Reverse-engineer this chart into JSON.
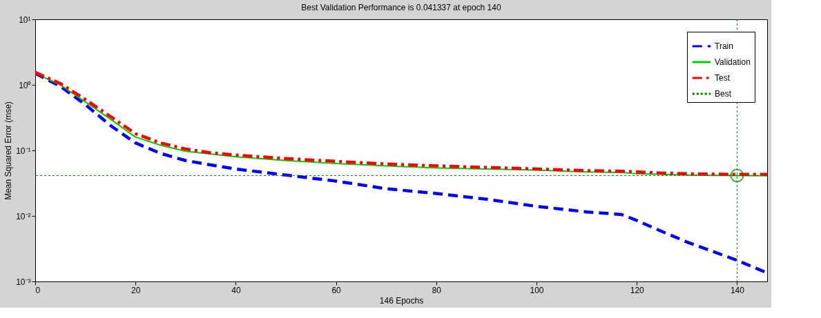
{
  "chart_data": {
    "type": "line",
    "title": "Best Validation Performance is 0.041337 at epoch 140",
    "xlabel": "146 Epochs",
    "ylabel": "Mean Squared Error  (mse)",
    "x": [
      0,
      5,
      10,
      15,
      20,
      25,
      30,
      35,
      40,
      50,
      60,
      70,
      80,
      90,
      100,
      110,
      117,
      120,
      125,
      130,
      135,
      140,
      146
    ],
    "series": [
      {
        "name": "Train",
        "color": "#0000ff",
        "line_style": "dashed",
        "values": [
          1.5,
          0.95,
          0.5,
          0.24,
          0.13,
          0.09,
          0.07,
          0.06,
          0.052,
          0.042,
          0.034,
          0.026,
          0.022,
          0.018,
          0.014,
          0.0115,
          0.0105,
          0.0085,
          0.0058,
          0.004,
          0.0029,
          0.0021,
          0.00135
        ]
      },
      {
        "name": "Validation",
        "color": "#00cc00",
        "line_style": "solid",
        "values": [
          1.5,
          1.0,
          0.55,
          0.3,
          0.16,
          0.12,
          0.097,
          0.088,
          0.08,
          0.07,
          0.063,
          0.058,
          0.054,
          0.052,
          0.05,
          0.047,
          0.046,
          0.044,
          0.043,
          0.042,
          0.0415,
          0.041337,
          0.041
        ]
      },
      {
        "name": "Test",
        "color": "#ff0000",
        "line_style": "dashdot",
        "values": [
          1.55,
          1.05,
          0.6,
          0.33,
          0.18,
          0.13,
          0.105,
          0.092,
          0.085,
          0.075,
          0.068,
          0.062,
          0.058,
          0.055,
          0.052,
          0.049,
          0.048,
          0.047,
          0.045,
          0.044,
          0.0435,
          0.043,
          0.043
        ]
      },
      {
        "type": "scatter",
        "marker": "circle",
        "color": "#008000",
        "x": [
          140
        ],
        "values": [
          0.041337
        ]
      }
    ],
    "ref_lines": [
      {
        "axis": "y",
        "value": 0.041337,
        "label": "Best",
        "color": "#008000",
        "line_style": "dotted"
      },
      {
        "axis": "x",
        "value": 140,
        "color": "#008000",
        "line_style": "dotted"
      }
    ],
    "log": true,
    "grid": false,
    "legend": "top right",
    "xlim": [
      0,
      146
    ],
    "xticks": [
      0,
      20,
      40,
      60,
      80,
      100,
      120,
      140
    ],
    "ylim": [
      0.001,
      10
    ],
    "yticks": [
      {
        "value": 10,
        "label": "10¹"
      },
      {
        "value": 1,
        "label": "10⁰"
      },
      {
        "value": 0.1,
        "label": "10⁻¹"
      },
      {
        "value": 0.01,
        "label": "10⁻²"
      },
      {
        "value": 0.001,
        "label": "10⁻³"
      }
    ]
  }
}
